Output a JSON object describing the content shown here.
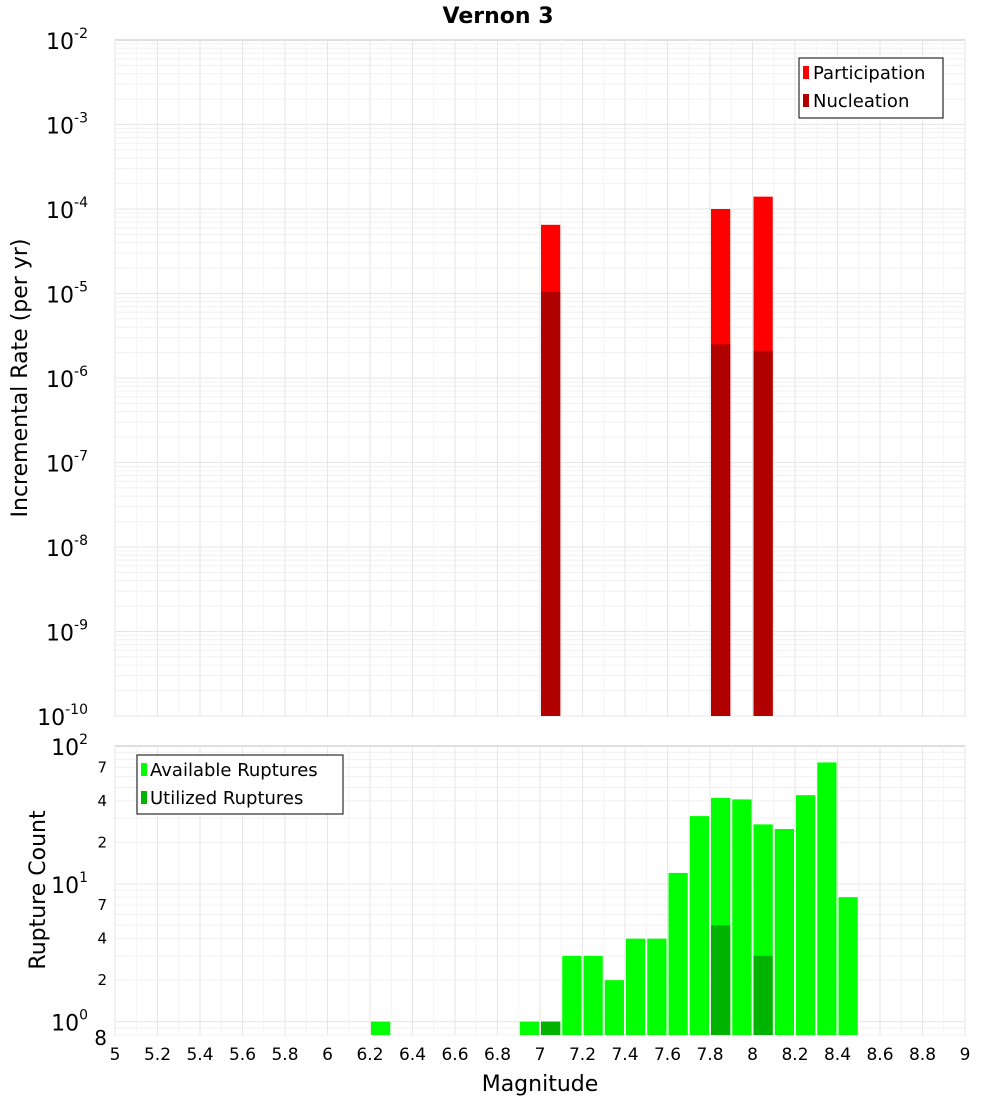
{
  "chart_data": {
    "title": "Vernon 3",
    "xlabel": "Magnitude",
    "xlim": [
      5,
      9
    ],
    "x_ticks": [
      "5",
      "5.2",
      "5.4",
      "5.6",
      "5.8",
      "6",
      "6.2",
      "6.4",
      "6.6",
      "6.8",
      "7",
      "7.2",
      "7.4",
      "7.6",
      "7.8",
      "8",
      "8.2",
      "8.4",
      "8.6",
      "8.8",
      "9"
    ],
    "bin_width": 0.1,
    "panels": [
      {
        "type": "bar",
        "ylabel": "Incremental Rate (per yr)",
        "yscale": "log",
        "ylim": [
          1e-10,
          0.01
        ],
        "y_tick_mantissa": "10",
        "y_tick_exponents": [
          "-10",
          "-9",
          "-8",
          "-7",
          "-6",
          "-5",
          "-4",
          "-3",
          "-2"
        ],
        "grid": true,
        "legend_position": "top-right",
        "series": [
          {
            "name": "Participation",
            "color": "#ff0000",
            "x": [
              7.05,
              7.85,
              8.05
            ],
            "values": [
              6.5e-05,
              0.0001,
              0.00014
            ]
          },
          {
            "name": "Nucleation",
            "color": "#b00000",
            "x": [
              7.05,
              7.85,
              8.05
            ],
            "values": [
              1.05e-05,
              2.5e-06,
              2.1e-06
            ]
          }
        ]
      },
      {
        "type": "bar",
        "ylabel": "Rupture Count",
        "yscale": "log",
        "ylim": [
          0.8,
          100
        ],
        "y_major_ticks": [
          {
            "mantissa": "10",
            "exp": "0",
            "value": 1
          },
          {
            "mantissa": "10",
            "exp": "1",
            "value": 10
          },
          {
            "mantissa": "10",
            "exp": "2",
            "value": 100
          }
        ],
        "y_minor_ticks": [
          {
            "label": "8",
            "value": 0.8
          },
          {
            "label": "2",
            "value": 2
          },
          {
            "label": "4",
            "value": 4
          },
          {
            "label": "7",
            "value": 7
          },
          {
            "label": "2",
            "value": 20
          },
          {
            "label": "4",
            "value": 40
          },
          {
            "label": "7",
            "value": 70
          }
        ],
        "grid": true,
        "legend_position": "top-left",
        "series": [
          {
            "name": "Available Ruptures",
            "color": "#00ff00",
            "x": [
              6.25,
              6.95,
              7.05,
              7.15,
              7.25,
              7.35,
              7.45,
              7.55,
              7.65,
              7.75,
              7.85,
              7.95,
              8.05,
              8.15,
              8.25,
              8.35,
              8.45
            ],
            "values": [
              1,
              1,
              1,
              3,
              3,
              2,
              4,
              4,
              12,
              31,
              42,
              41,
              27,
              25,
              44,
              76,
              8
            ]
          },
          {
            "name": "Utilized Ruptures",
            "color": "#00b300",
            "x": [
              7.05,
              7.85,
              8.05
            ],
            "values": [
              1,
              5,
              3
            ]
          }
        ]
      }
    ]
  }
}
